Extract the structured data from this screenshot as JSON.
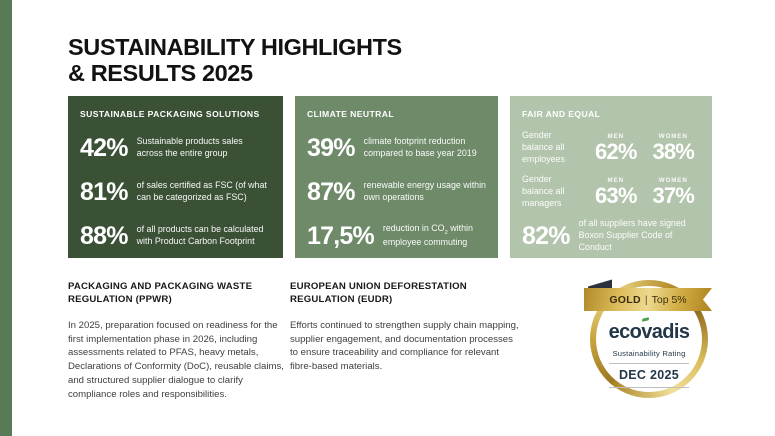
{
  "title": {
    "line1": "SUSTAINABILITY HIGHLIGHTS",
    "line2": "& RESULTS 2025"
  },
  "colors": {
    "strip": "#587a57",
    "panel_dark": "#3a5136",
    "panel_medium": "#6e8a69",
    "panel_light": "#b2c4ab",
    "badge_gold": "#c9a43e",
    "badge_navy": "#233748",
    "badge_green": "#4aa147"
  },
  "panels": {
    "packaging": {
      "header": "SUSTAINABLE PACKAGING SOLUTIONS",
      "stats": [
        {
          "value": "42%",
          "desc": "Sustainable products sales across the entire group"
        },
        {
          "value": "81%",
          "desc": "of sales certified as FSC (of what can be categorized as FSC)"
        },
        {
          "value": "88%",
          "desc": "of all products can be calculated with Product Carbon Footprint"
        }
      ]
    },
    "climate": {
      "header": "CLIMATE NEUTRAL",
      "stats": [
        {
          "value": "39%",
          "desc": "climate footprint reduction compared to base year 2019"
        },
        {
          "value": "87%",
          "desc": "renewable energy usage within own operations"
        }
      ],
      "co2_stat": {
        "value": "17,5%",
        "desc_pre": "reduction in CO",
        "desc_sub": "2",
        "desc_post": "within employee commuting"
      }
    },
    "fair": {
      "header": "FAIR AND EQUAL",
      "gender_rows": [
        {
          "label": "Gender balance all employees",
          "men_label": "MEN",
          "men_value": "62%",
          "women_label": "WOMEN",
          "women_value": "38%"
        },
        {
          "label": "Gender balance all managers",
          "men_label": "MEN",
          "men_value": "63%",
          "women_label": "WOMEN",
          "women_value": "37%"
        }
      ],
      "supplier_stat": {
        "value": "82%",
        "desc": "of all suppliers have signed Boxon Supplier Code of Conduct"
      }
    }
  },
  "sections": [
    {
      "header": "PACKAGING AND PACKAGING WASTE REGULATION (PPWR)",
      "body": "In 2025, preparation focused on readiness for the first implementation phase in 2026, including assessments related to PFAS, heavy metals, Declarations of Conformity (DoC), reusable claims, and structured supplier dialogue to clarify compliance roles and responsibilities."
    },
    {
      "header": "EUROPEAN UNION DEFORESTATION REGULATION (EUDR)",
      "body": "Efforts continued to strengthen supply chain mapping, supplier engagement, and documentation processes to ensure traceability and compliance for relevant fibre-based materials."
    }
  ],
  "badge": {
    "ribbon_award": "GOLD",
    "ribbon_divider": "|",
    "ribbon_rank": "Top 5%",
    "logo_pre": "eco",
    "logo_v": "v",
    "logo_post": "adis",
    "subtitle": "Sustainability Rating",
    "date": "DEC 2025"
  }
}
